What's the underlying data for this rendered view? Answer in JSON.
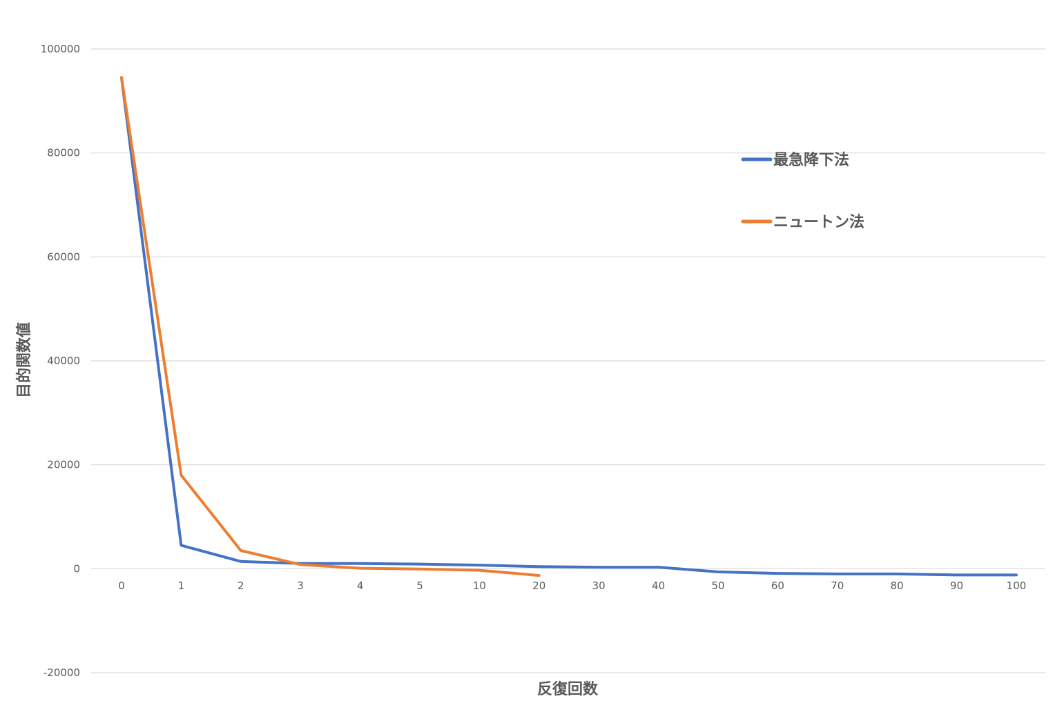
{
  "chart_data": {
    "type": "line",
    "title": "",
    "xlabel": "反復回数",
    "ylabel": "目的関数値",
    "categories": [
      "0",
      "1",
      "2",
      "3",
      "4",
      "5",
      "10",
      "20",
      "30",
      "40",
      "50",
      "60",
      "70",
      "80",
      "90",
      "100"
    ],
    "yticks": [
      "100000",
      "80000",
      "60000",
      "40000",
      "20000",
      "0",
      "-20000"
    ],
    "ylim": [
      -20000,
      100000
    ],
    "grid": true,
    "legend_position": "right",
    "series": [
      {
        "name": "最急降下法",
        "color": "#4472C4",
        "values": [
          94500,
          4500,
          1400,
          1000,
          1000,
          900,
          700,
          400,
          300,
          300,
          -600,
          -900,
          -1000,
          -1000,
          -1200,
          -1200
        ]
      },
      {
        "name": "ニュートン法",
        "color": "#ED7D31",
        "values": [
          94500,
          18000,
          3500,
          800,
          100,
          -50,
          -300,
          -1300,
          null,
          null,
          null,
          null,
          null,
          null,
          null,
          null
        ]
      }
    ]
  }
}
